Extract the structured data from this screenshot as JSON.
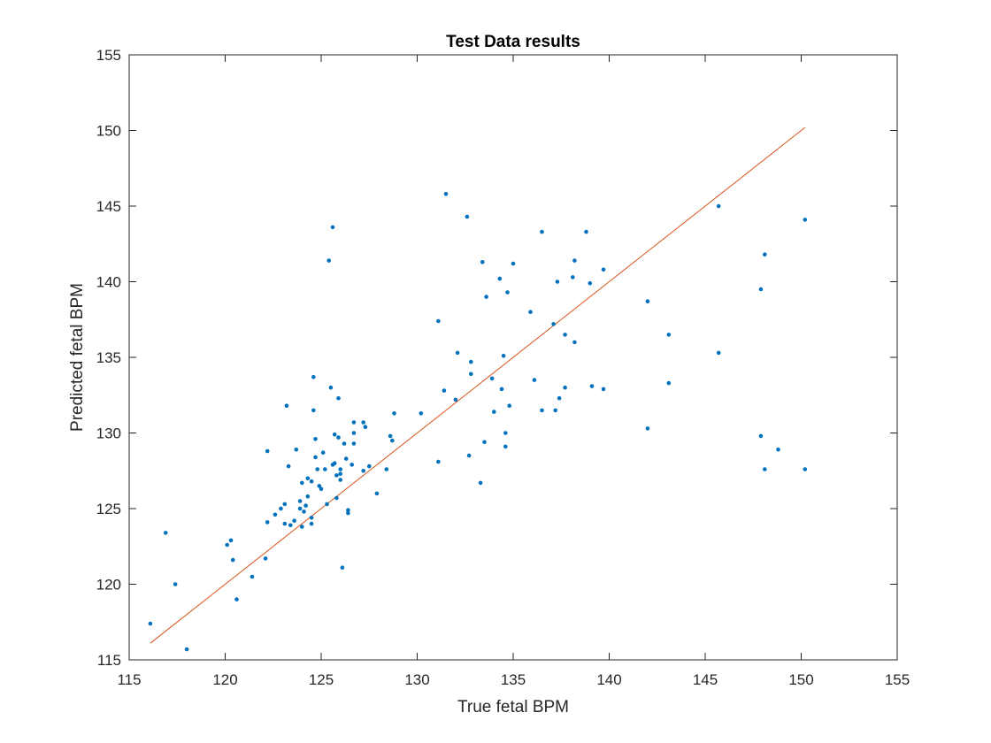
{
  "chart_data": {
    "type": "scatter",
    "title": "Test Data results",
    "xlabel": "True fetal BPM",
    "ylabel": "Predicted fetal BPM",
    "xlim": [
      115,
      155
    ],
    "ylim": [
      115,
      155
    ],
    "xticks": [
      115,
      120,
      125,
      130,
      135,
      140,
      145,
      150,
      155
    ],
    "yticks": [
      115,
      120,
      125,
      130,
      135,
      140,
      145,
      150,
      155
    ],
    "grid": false,
    "legend": "none",
    "colors": {
      "points": "#0072BD",
      "line": "#D95319",
      "axes": "#262626"
    },
    "series": [
      {
        "kind": "scatter",
        "points": [
          [
            116.1,
            117.4
          ],
          [
            116.9,
            123.4
          ],
          [
            117.4,
            120.0
          ],
          [
            118.0,
            115.7
          ],
          [
            120.1,
            122.6
          ],
          [
            120.3,
            122.9
          ],
          [
            120.4,
            121.6
          ],
          [
            120.6,
            119.0
          ],
          [
            121.4,
            120.5
          ],
          [
            122.1,
            121.7
          ],
          [
            122.2,
            124.1
          ],
          [
            122.2,
            128.8
          ],
          [
            122.6,
            124.6
          ],
          [
            122.9,
            125.0
          ],
          [
            123.1,
            125.3
          ],
          [
            123.1,
            124.0
          ],
          [
            123.2,
            131.8
          ],
          [
            123.3,
            127.8
          ],
          [
            123.4,
            123.9
          ],
          [
            123.6,
            124.2
          ],
          [
            123.7,
            128.9
          ],
          [
            123.9,
            125.5
          ],
          [
            123.9,
            125.0
          ],
          [
            124.0,
            126.7
          ],
          [
            124.0,
            123.8
          ],
          [
            124.1,
            124.8
          ],
          [
            124.2,
            125.2
          ],
          [
            124.3,
            127.0
          ],
          [
            124.3,
            125.8
          ],
          [
            124.5,
            126.8
          ],
          [
            124.5,
            124.4
          ],
          [
            124.5,
            124.0
          ],
          [
            124.6,
            131.5
          ],
          [
            124.6,
            133.7
          ],
          [
            124.7,
            129.6
          ],
          [
            124.7,
            128.4
          ],
          [
            124.8,
            127.6
          ],
          [
            124.9,
            126.5
          ],
          [
            125.0,
            126.3
          ],
          [
            125.1,
            128.7
          ],
          [
            125.2,
            127.6
          ],
          [
            125.3,
            125.3
          ],
          [
            125.4,
            141.4
          ],
          [
            125.5,
            133.0
          ],
          [
            125.6,
            143.6
          ],
          [
            125.6,
            127.9
          ],
          [
            125.7,
            129.9
          ],
          [
            125.7,
            128.0
          ],
          [
            125.8,
            127.2
          ],
          [
            125.8,
            125.7
          ],
          [
            125.9,
            129.7
          ],
          [
            125.9,
            132.3
          ],
          [
            126.0,
            127.6
          ],
          [
            126.0,
            127.3
          ],
          [
            126.0,
            126.9
          ],
          [
            126.1,
            121.1
          ],
          [
            126.2,
            129.3
          ],
          [
            126.3,
            128.3
          ],
          [
            126.4,
            124.9
          ],
          [
            126.4,
            124.7
          ],
          [
            126.6,
            127.9
          ],
          [
            126.7,
            130.7
          ],
          [
            126.7,
            130.0
          ],
          [
            126.7,
            129.3
          ],
          [
            127.2,
            130.7
          ],
          [
            127.2,
            127.5
          ],
          [
            127.3,
            130.4
          ],
          [
            127.5,
            127.8
          ],
          [
            127.9,
            126.0
          ],
          [
            128.4,
            127.6
          ],
          [
            128.6,
            129.8
          ],
          [
            128.7,
            129.5
          ],
          [
            128.8,
            131.3
          ],
          [
            130.2,
            131.3
          ],
          [
            131.1,
            137.4
          ],
          [
            131.1,
            128.1
          ],
          [
            131.4,
            132.8
          ],
          [
            131.5,
            145.8
          ],
          [
            132.0,
            132.2
          ],
          [
            132.1,
            135.3
          ],
          [
            132.6,
            144.3
          ],
          [
            132.7,
            128.5
          ],
          [
            132.8,
            133.9
          ],
          [
            132.8,
            134.7
          ],
          [
            133.3,
            126.7
          ],
          [
            133.4,
            141.3
          ],
          [
            133.5,
            129.4
          ],
          [
            133.6,
            139.0
          ],
          [
            133.9,
            133.6
          ],
          [
            134.0,
            131.4
          ],
          [
            134.3,
            140.2
          ],
          [
            134.4,
            132.9
          ],
          [
            134.5,
            135.1
          ],
          [
            134.6,
            130.0
          ],
          [
            134.6,
            129.1
          ],
          [
            134.7,
            139.3
          ],
          [
            134.8,
            131.8
          ],
          [
            135.0,
            141.2
          ],
          [
            135.9,
            138.0
          ],
          [
            136.1,
            133.5
          ],
          [
            136.5,
            131.5
          ],
          [
            136.5,
            143.3
          ],
          [
            137.1,
            137.2
          ],
          [
            137.2,
            131.5
          ],
          [
            137.3,
            140.0
          ],
          [
            137.4,
            132.3
          ],
          [
            137.7,
            136.5
          ],
          [
            137.7,
            133.0
          ],
          [
            138.1,
            140.3
          ],
          [
            138.2,
            141.4
          ],
          [
            138.2,
            136.0
          ],
          [
            138.8,
            143.3
          ],
          [
            139.0,
            139.9
          ],
          [
            139.1,
            133.1
          ],
          [
            139.7,
            140.8
          ],
          [
            139.7,
            132.9
          ],
          [
            142.0,
            138.7
          ],
          [
            142.0,
            130.3
          ],
          [
            143.1,
            136.5
          ],
          [
            143.1,
            133.3
          ],
          [
            145.7,
            135.3
          ],
          [
            145.7,
            145.0
          ],
          [
            147.9,
            139.5
          ],
          [
            147.9,
            129.8
          ],
          [
            148.1,
            141.8
          ],
          [
            148.1,
            127.6
          ],
          [
            148.8,
            128.9
          ],
          [
            150.2,
            144.1
          ],
          [
            150.2,
            127.6
          ]
        ]
      },
      {
        "kind": "line",
        "points": [
          [
            116.1,
            116.1
          ],
          [
            150.2,
            150.2
          ]
        ]
      }
    ]
  }
}
